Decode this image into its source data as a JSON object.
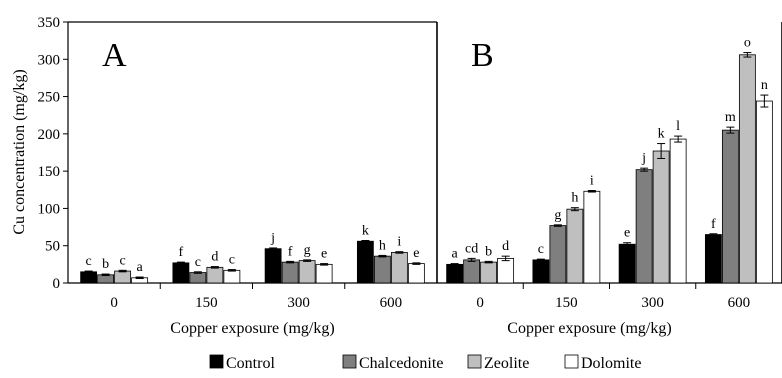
{
  "chart_data": {
    "type": "bar",
    "ylabel": "Cu concentration (mg/kg)",
    "ylim": [
      0,
      350
    ],
    "yticks": [
      0,
      50,
      100,
      150,
      200,
      250,
      300,
      350
    ],
    "legend_position": "bottom",
    "series_names": [
      "Control",
      "Chalcedonite",
      "Zeolite",
      "Dolomite"
    ],
    "series_colors": [
      "#000000",
      "#7f7f7f",
      "#bfbfbf",
      "#ffffff"
    ],
    "panels": [
      {
        "panel_label": "A",
        "xlabel": "Copper exposure (mg/kg)",
        "categories": [
          "0",
          "150",
          "300",
          "600"
        ],
        "series": [
          {
            "name": "Control",
            "values": [
              15,
              27,
              46,
              56
            ],
            "errors": [
              1,
              1,
              1,
              1
            ],
            "letters": [
              "c",
              "f",
              "j",
              "k"
            ]
          },
          {
            "name": "Chalcedonite",
            "values": [
              11,
              14,
              28,
              36
            ],
            "errors": [
              1,
              1,
              1,
              1
            ],
            "letters": [
              "b",
              "c",
              "f",
              "h"
            ]
          },
          {
            "name": "Zeolite",
            "values": [
              16,
              21,
              30,
              41
            ],
            "errors": [
              1,
              1,
              1,
              1
            ],
            "letters": [
              "c",
              "d",
              "g",
              "i"
            ]
          },
          {
            "name": "Dolomite",
            "values": [
              7,
              17,
              25,
              26
            ],
            "errors": [
              1,
              1,
              1,
              1
            ],
            "letters": [
              "a",
              "c",
              "e",
              "e"
            ]
          }
        ]
      },
      {
        "panel_label": "B",
        "xlabel": "Copper exposure (mg/kg)",
        "categories": [
          "0",
          "150",
          "300",
          "600"
        ],
        "series": [
          {
            "name": "Control",
            "values": [
              25,
              31,
              52,
              65
            ],
            "errors": [
              1,
              1,
              2,
              1
            ],
            "letters": [
              "a",
              "c",
              "e",
              "f"
            ]
          },
          {
            "name": "Chalcedonite",
            "values": [
              31,
              77,
              152,
              205
            ],
            "errors": [
              2,
              1,
              2,
              4
            ],
            "letters": [
              "cd",
              "g",
              "j",
              "m"
            ]
          },
          {
            "name": "Zeolite",
            "values": [
              28,
              99,
              177,
              306
            ],
            "errors": [
              1,
              2,
              10,
              3
            ],
            "letters": [
              "b",
              "h",
              "k",
              "o"
            ]
          },
          {
            "name": "Dolomite",
            "values": [
              33,
              123,
              193,
              244
            ],
            "errors": [
              3,
              1,
              4,
              8
            ],
            "letters": [
              "d",
              "i",
              "l",
              "n"
            ]
          }
        ]
      }
    ]
  }
}
